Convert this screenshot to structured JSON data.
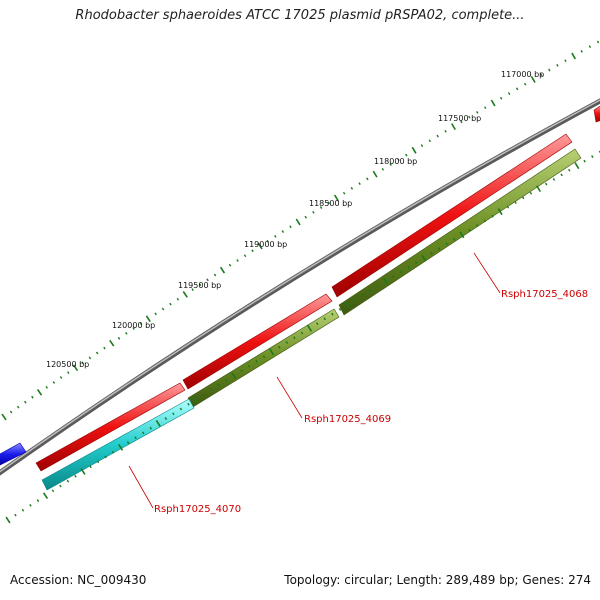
{
  "title": "Rhodobacter sphaeroides ATCC 17025 plasmid pRSPA02, complete...",
  "footer": {
    "accession": "Accession: NC_009430",
    "stats": "Topology: circular; Length: 289,489 bp; Genes: 274"
  },
  "ruler_labels": [
    "117000 bp",
    "117500 bp",
    "118000 bp",
    "118500 bp",
    "119000 bp",
    "119500 bp",
    "120000 bp",
    "120500 bp"
  ],
  "genes": [
    {
      "label": "Rsph17025_4068"
    },
    {
      "label": "Rsph17025_4069"
    },
    {
      "label": "Rsph17025_4070"
    }
  ],
  "colors": {
    "backbone": "#7a7a7a",
    "red_track": "#ee1111",
    "olive_track": "#6b8e23",
    "cyan_track": "#22cccc",
    "blue_track": "#1a1aee",
    "tick": "#1a7a1a",
    "label_red": "#cc0000"
  }
}
